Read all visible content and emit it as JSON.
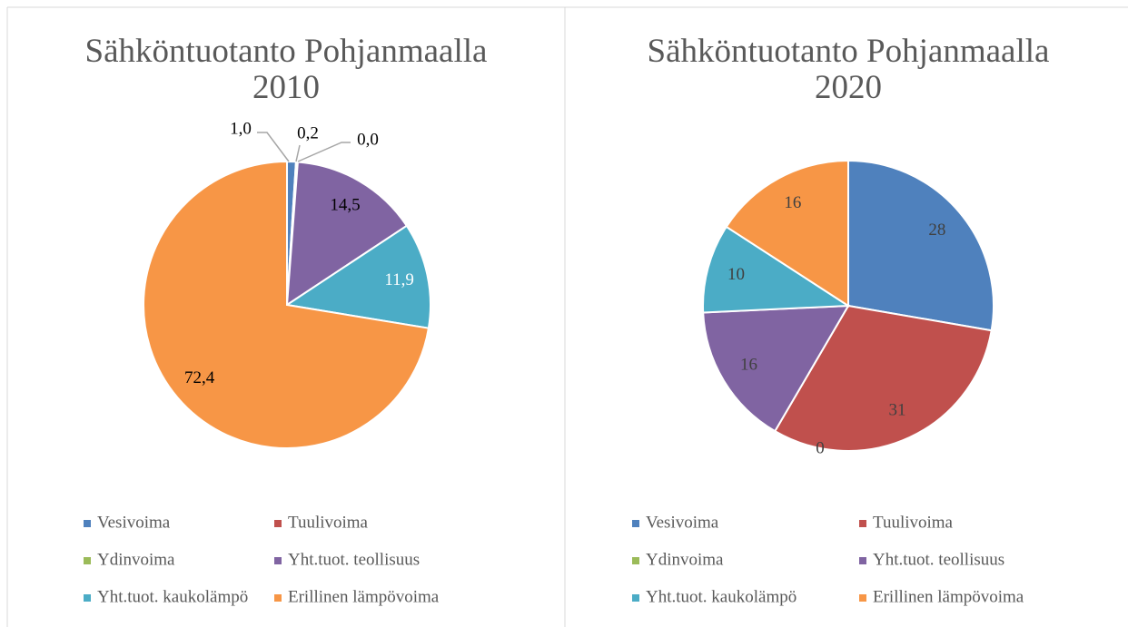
{
  "chart_data": [
    {
      "type": "pie",
      "title": "Sähköntuotanto Pohjanmaalla 2010",
      "categories": [
        "Vesivoima",
        "Tuulivoima",
        "Ydinvoima",
        "Yht.tuot. teollisuus",
        "Yht.tuot. kaukolämpö",
        "Erillinen lämpövoima"
      ],
      "values": [
        1.0,
        0.2,
        0.0,
        14.5,
        11.9,
        72.4
      ],
      "value_labels": [
        "1,0",
        "0,2",
        "0,0",
        "14,5",
        "11,9",
        "72,4"
      ],
      "colors": [
        "#4f81bd",
        "#c0504d",
        "#9bbb59",
        "#8064a2",
        "#4bacc6",
        "#f79646"
      ]
    },
    {
      "type": "pie",
      "title": "Sähköntuotanto Pohjanmaalla 2020",
      "categories": [
        "Vesivoima",
        "Tuulivoima",
        "Ydinvoima",
        "Yht.tuot. teollisuus",
        "Yht.tuot. kaukolämpö",
        "Erillinen lämpövoima"
      ],
      "values": [
        28,
        31,
        0,
        16,
        10,
        16
      ],
      "colors": [
        "#4f81bd",
        "#c0504d",
        "#9bbb59",
        "#8064a2",
        "#4bacc6",
        "#f79646"
      ]
    }
  ]
}
